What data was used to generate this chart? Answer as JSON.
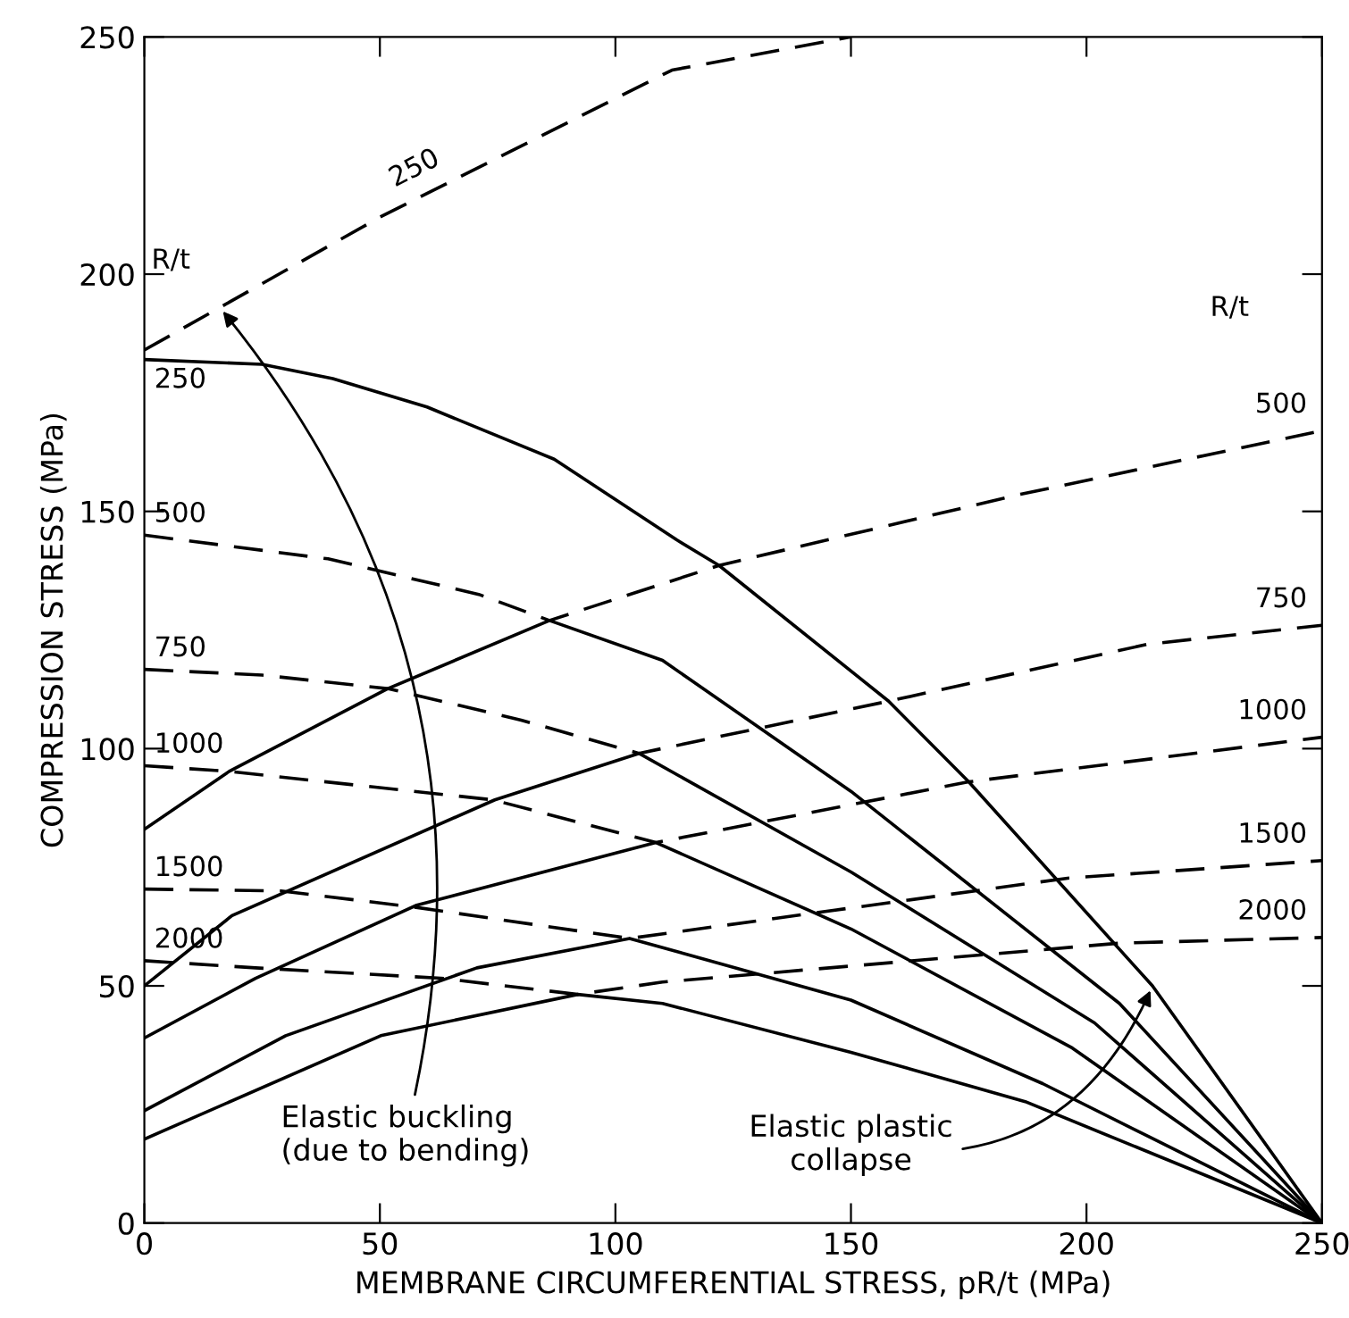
{
  "chart_data": {
    "type": "line",
    "xlabel": "MEMBRANE CIRCUMFERENTIAL STRESS, pR/t (MPa)",
    "ylabel": "COMPRESSION STRESS (MPa)",
    "xlim": [
      0,
      250
    ],
    "ylim": [
      0,
      250
    ],
    "xticks": [
      0,
      50,
      100,
      150,
      200,
      250
    ],
    "yticks": [
      0,
      50,
      100,
      150,
      200,
      250
    ],
    "grid": false,
    "legend": false,
    "marker": "none",
    "series": [
      {
        "name": "250",
        "color": "#000000",
        "line_style": "dashed",
        "x": [
          0,
          50,
          112,
          150
        ],
        "values": [
          184,
          212,
          243,
          250
        ]
      },
      {
        "name": "250",
        "color": "#000000",
        "line_style": "solid",
        "x": [
          0,
          25,
          40,
          60,
          87,
          113,
          122,
          158,
          175,
          214,
          250
        ],
        "values": [
          182,
          181,
          178,
          172,
          161,
          144,
          138.6,
          110,
          93,
          50,
          0
        ]
      },
      {
        "name": "500",
        "color": "#000000",
        "line_style": "dashed",
        "x": [
          0,
          39,
          71,
          86,
          122,
          186,
          250
        ],
        "values": [
          145,
          140,
          132.5,
          127,
          138.6,
          153.6,
          167
        ]
      },
      {
        "color": "#000000",
        "line_style": "solid",
        "x": [
          0,
          18,
          51.6,
          86,
          110,
          150,
          207,
          250
        ],
        "values": [
          83,
          95.2,
          112.6,
          127,
          118.6,
          91,
          46.3,
          0
        ]
      },
      {
        "name": "750",
        "color": "#000000",
        "line_style": "dashed",
        "x": [
          0,
          25,
          52,
          80,
          105,
          158,
          213,
          250
        ],
        "values": [
          116.7,
          115.5,
          112.6,
          106,
          99,
          110,
          122,
          126
        ]
      },
      {
        "color": "#000000",
        "line_style": "solid",
        "x": [
          0,
          18.6,
          74.4,
          105,
          150,
          201.7,
          250
        ],
        "values": [
          50,
          64.8,
          89.2,
          99,
          74,
          42.2,
          0
        ]
      },
      {
        "name": "1000",
        "color": "#000000",
        "line_style": "dashed",
        "x": [
          0,
          18,
          74,
          108.6,
          175,
          250
        ],
        "values": [
          96.4,
          95.2,
          89.2,
          80.2,
          93,
          102.4
        ]
      },
      {
        "color": "#000000",
        "line_style": "solid",
        "x": [
          0,
          23.6,
          57.8,
          108.6,
          150,
          197,
          250
        ],
        "values": [
          39,
          51.6,
          67,
          80.2,
          62,
          36.9,
          0
        ]
      },
      {
        "name": "1500",
        "color": "#000000",
        "line_style": "dashed",
        "x": [
          0,
          29,
          58,
          103,
          196,
          250
        ],
        "values": [
          70.4,
          70,
          66.5,
          60,
          72.7,
          76.4
        ]
      },
      {
        "color": "#000000",
        "line_style": "solid",
        "x": [
          0,
          30,
          70.6,
          103,
          150,
          190.7,
          250
        ],
        "values": [
          23.7,
          39.5,
          53.8,
          60,
          47,
          29.4,
          0
        ]
      },
      {
        "name": "2000",
        "color": "#000000",
        "line_style": "dashed",
        "x": [
          0,
          23.6,
          63,
          92,
          110,
          207,
          250
        ],
        "values": [
          55.3,
          53.8,
          51.6,
          48.2,
          50.8,
          59,
          60.2
        ]
      },
      {
        "color": "#000000",
        "line_style": "solid",
        "x": [
          0,
          50.2,
          92,
          110,
          150,
          187,
          250
        ],
        "values": [
          17.7,
          39.5,
          48.2,
          46.3,
          36,
          25.6,
          0
        ]
      }
    ],
    "annotations": [
      "R/t",
      "R/t",
      {
        "text": "Elastic buckling\n(due to bending)",
        "x": 16,
        "y": 193
      },
      {
        "text": "Elastic plastic\ncollapse",
        "x": 214,
        "y": 50
      }
    ]
  }
}
